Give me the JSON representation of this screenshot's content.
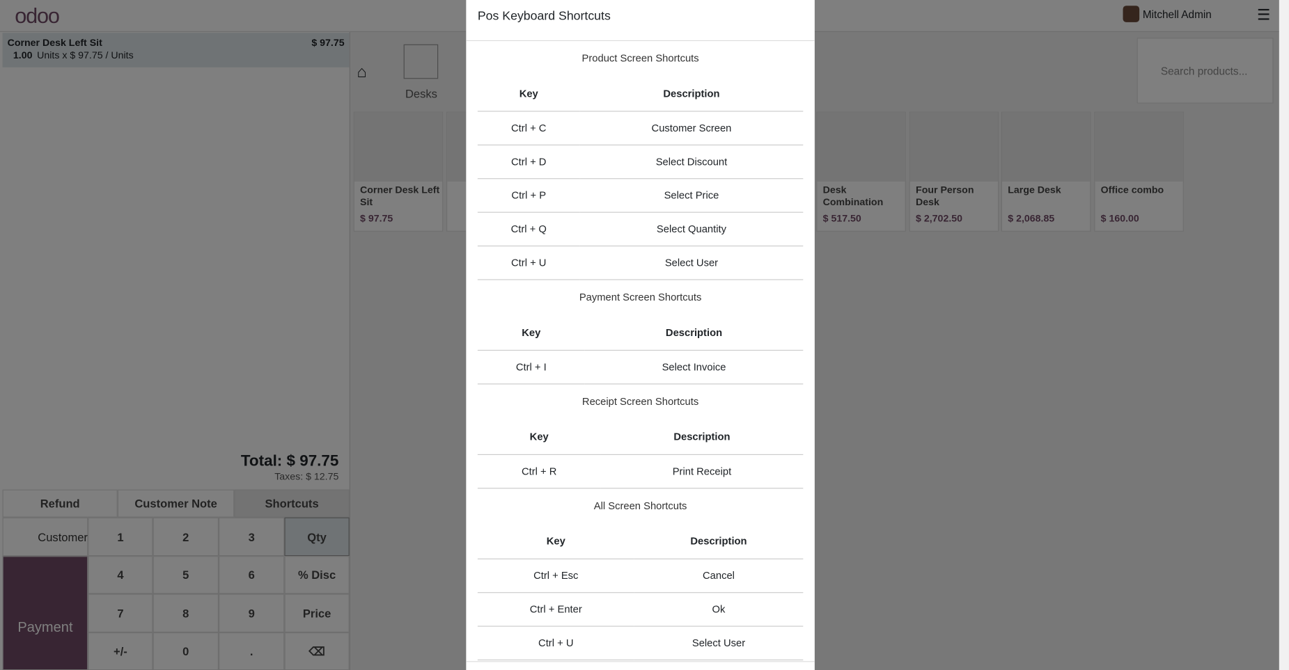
{
  "header": {
    "logo": "odoo",
    "user": "Mitchell Admin"
  },
  "order": {
    "name": "Corner Desk Left Sit",
    "price": "$ 97.75",
    "qty": "1.00",
    "detail": "Units x $ 97.75 / Units",
    "total": "Total: $ 97.75",
    "taxes": "Taxes: $ 12.75"
  },
  "actions": [
    "Refund",
    "Customer Note",
    "Shortcuts"
  ],
  "customer": "Customer",
  "payment": "Payment",
  "numpad": [
    [
      "1",
      "2",
      "3",
      "Qty"
    ],
    [
      "4",
      "5",
      "6",
      "% Disc"
    ],
    [
      "7",
      "8",
      "9",
      "Price"
    ],
    [
      "+/-",
      "0",
      ".",
      "⌫"
    ]
  ],
  "category": "Desks",
  "search_placeholder": "Search products...",
  "products": [
    {
      "name": "Corner Desk Left Sit",
      "price": "$ 97.75"
    },
    {
      "name": "Desk Combination",
      "price": "$ 517.50"
    },
    {
      "name": "Four Person Desk",
      "price": "$ 2,702.50"
    },
    {
      "name": "Large Desk",
      "price": "$ 2,068.85"
    },
    {
      "name": "Office combo",
      "price": "$ 160.00"
    }
  ],
  "modal": {
    "title": "Pos Keyboard Shortcuts",
    "sections": [
      {
        "title": "Product Screen Shortcuts",
        "columns": [
          "Key",
          "Description"
        ],
        "rows": [
          [
            "Ctrl + C",
            "Customer Screen"
          ],
          [
            "Ctrl + D",
            "Select Discount"
          ],
          [
            "Ctrl + P",
            "Select Price"
          ],
          [
            "Ctrl + Q",
            "Select Quantity"
          ],
          [
            "Ctrl + U",
            "Select User"
          ]
        ]
      },
      {
        "title": "Payment Screen Shortcuts",
        "columns": [
          "Key",
          "Description"
        ],
        "rows": [
          [
            "Ctrl + I",
            "Select Invoice"
          ]
        ]
      },
      {
        "title": "Receipt Screen Shortcuts",
        "columns": [
          "Key",
          "Description"
        ],
        "rows": [
          [
            "Ctrl + R",
            "Print Receipt"
          ]
        ]
      },
      {
        "title": "All Screen Shortcuts",
        "columns": [
          "Key",
          "Description"
        ],
        "rows": [
          [
            "Ctrl + Esc",
            "Cancel"
          ],
          [
            "Ctrl + Enter",
            "Ok"
          ],
          [
            "Ctrl + U",
            "Select User"
          ]
        ]
      }
    ]
  }
}
